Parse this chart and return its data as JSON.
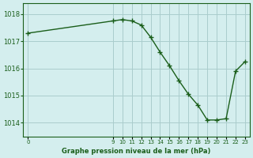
{
  "x_data": [
    0,
    9,
    10,
    11,
    12,
    13,
    14,
    15,
    16,
    17,
    18,
    19,
    20,
    21,
    22,
    23
  ],
  "y_data": [
    1017.3,
    1017.75,
    1017.8,
    1017.75,
    1017.6,
    1017.15,
    1016.6,
    1016.1,
    1015.55,
    1015.05,
    1014.65,
    1014.1,
    1014.1,
    1014.15,
    1015.9,
    1016.25
  ],
  "line_color": "#1a5e1a",
  "bg_color": "#d4eeee",
  "grid_color": "#aacccc",
  "title": "Graphe pression niveau de la mer (hPa)",
  "xticks": [
    0,
    9,
    10,
    11,
    12,
    13,
    14,
    15,
    16,
    17,
    18,
    19,
    20,
    21,
    22,
    23
  ],
  "yticks": [
    1014,
    1015,
    1016,
    1017,
    1018
  ],
  "ylim": [
    1013.5,
    1018.4
  ],
  "xlim": [
    -0.5,
    23.5
  ]
}
